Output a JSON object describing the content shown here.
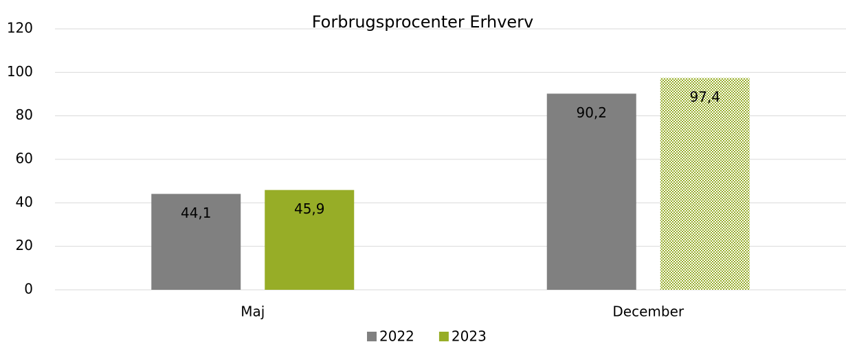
{
  "chart_data": {
    "type": "bar",
    "title": "Forbrugsprocenter Erhverv",
    "categories": [
      "Maj",
      "December"
    ],
    "series": [
      {
        "name": "2022",
        "color": "#808080",
        "values": [
          44.1,
          90.2
        ],
        "value_labels": [
          "44,1",
          "90,2"
        ]
      },
      {
        "name": "2023",
        "color": "#97ad27",
        "values": [
          45.9,
          97.4
        ],
        "value_labels": [
          "45,9",
          "97,4"
        ],
        "pattern": [
          null,
          "dots"
        ]
      }
    ],
    "ylim": [
      0,
      120
    ],
    "yticks": [
      0,
      20,
      40,
      60,
      80,
      100,
      120
    ],
    "grid": true,
    "legend": "bottom"
  }
}
